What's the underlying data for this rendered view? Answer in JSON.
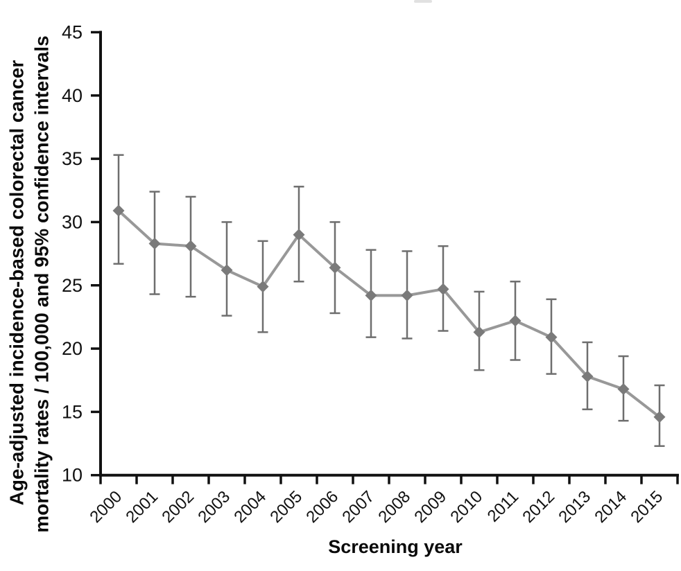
{
  "figure": {
    "x_axis_title": "Screening year",
    "y_axis_title_line1": "Age-adjusted incidence-based colorectal cancer",
    "y_axis_title_line2": "mortality rates / 100,000 and 95% confidence intervals"
  },
  "chart_data": {
    "type": "line",
    "title": "",
    "xlabel": "Screening year",
    "ylabel": "Age-adjusted incidence-based colorectal cancer mortality rates / 100,000 and 95% confidence intervals",
    "categories": [
      "2000",
      "2001",
      "2002",
      "2003",
      "2004",
      "2005",
      "2006",
      "2007",
      "2008",
      "2009",
      "2010",
      "2011",
      "2012",
      "2013",
      "2014",
      "2015"
    ],
    "series": [
      {
        "name": "Age-adjusted incidence-based colorectal cancer mortality rate per 100,000",
        "values": [
          30.9,
          28.3,
          28.1,
          26.2,
          24.9,
          29.0,
          26.4,
          24.2,
          24.2,
          24.7,
          21.3,
          22.2,
          20.9,
          17.8,
          16.8,
          14.6
        ],
        "ci_low": [
          26.7,
          24.3,
          24.1,
          22.6,
          21.3,
          25.3,
          22.8,
          20.9,
          20.8,
          21.4,
          18.3,
          19.1,
          18.0,
          15.2,
          14.3,
          12.3
        ],
        "ci_high": [
          35.3,
          32.4,
          32.0,
          30.0,
          28.5,
          32.8,
          30.0,
          27.8,
          27.7,
          28.1,
          24.5,
          25.3,
          23.9,
          20.5,
          19.4,
          17.1
        ]
      }
    ],
    "ylim": [
      10,
      45
    ],
    "yticks": [
      10,
      15,
      20,
      25,
      30,
      35,
      40,
      45
    ],
    "grid": false,
    "legend_position": "none",
    "marker": "diamond",
    "error_bars": "95% confidence intervals",
    "colors": {
      "line": "#989898",
      "marker": "#7a7a7a",
      "error_bar": "#6e6e6e",
      "axis": "#111111",
      "text": "#0a0a0a",
      "background": "#ffffff",
      "cropped_fragment": "#d9d9d9"
    }
  }
}
